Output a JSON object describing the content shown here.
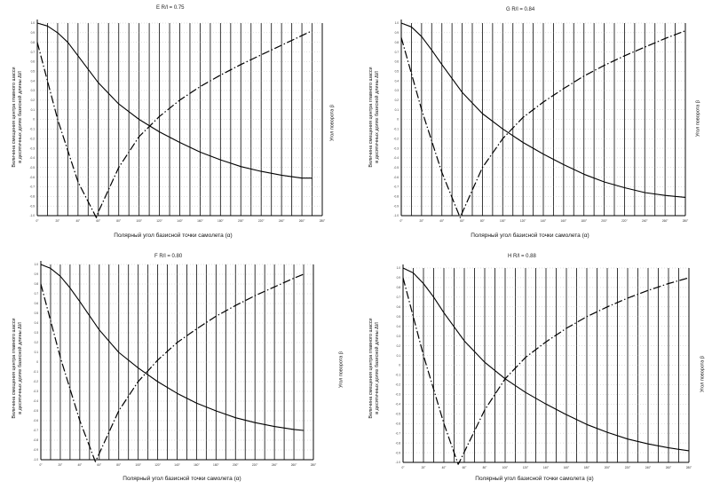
{
  "chart_data": [
    {
      "type": "line",
      "title": "E  R/l = 0.75",
      "xlabel": "Полярный угол базисной точки самолета (α)",
      "ylabel_line1": "Величина смещения центра главного шасси",
      "ylabel_line2": "в десятичных долях базисной длины Δl/l",
      "y2label": "Угол поворота β",
      "x_ticks": [
        "0°",
        "20°",
        "40°",
        "60°",
        "80°",
        "100°",
        "120°",
        "140°",
        "160°",
        "180°",
        "200°",
        "220°",
        "240°",
        "260°",
        "280°"
      ],
      "y_ticks": [
        "1.0",
        "0.9",
        "0.8",
        "0.7",
        "0.6",
        "0.5",
        "0.4",
        "0.3",
        "0.2",
        "0.1",
        "0",
        "-0.1",
        "-0.2",
        "-0.3",
        "-0.4",
        "-0.5",
        "-0.6",
        "-0.7",
        "-0.8",
        "-0.9",
        "-1.0"
      ],
      "xlim": [
        0,
        280
      ],
      "ylim": [
        -1.0,
        1.0
      ],
      "series": [
        {
          "style": "solid",
          "x": [
            0,
            10,
            20,
            30,
            40,
            60,
            80,
            100,
            120,
            140,
            160,
            180,
            200,
            220,
            240,
            260,
            270
          ],
          "y": [
            1.0,
            0.97,
            0.9,
            0.8,
            0.66,
            0.38,
            0.16,
            0.0,
            -0.13,
            -0.24,
            -0.34,
            -0.42,
            -0.49,
            -0.54,
            -0.58,
            -0.61,
            -0.61
          ]
        },
        {
          "style": "dashdot",
          "x": [
            0,
            20,
            40,
            58,
            60,
            80,
            100,
            120,
            140,
            160,
            180,
            200,
            220,
            240,
            260,
            270
          ],
          "y": [
            0.8,
            0.0,
            -0.65,
            -1.02,
            -0.96,
            -0.5,
            -0.18,
            0.03,
            0.2,
            0.34,
            0.46,
            0.57,
            0.67,
            0.77,
            0.87,
            0.92
          ]
        }
      ]
    },
    {
      "type": "line",
      "title": "G  R/l = 0.84",
      "xlabel": "Полярный угол базисной точки самолета (α)",
      "ylabel_line1": "Величина смещения центра главного шасси",
      "ylabel_line2": "в десятичных долях базисной длины Δl/l",
      "y2label": "Угол поворота β",
      "x_ticks": [
        "0°",
        "20°",
        "40°",
        "60°",
        "80°",
        "100°",
        "120°",
        "140°",
        "160°",
        "180°",
        "200°",
        "220°",
        "240°",
        "260°",
        "280°"
      ],
      "y_ticks": [
        "1.0",
        "0.9",
        "0.8",
        "0.7",
        "0.6",
        "0.5",
        "0.4",
        "0.3",
        "0.2",
        "0.1",
        "0",
        "-0.1",
        "-0.2",
        "-0.3",
        "-0.4",
        "-0.5",
        "-0.6",
        "-0.7",
        "-0.8",
        "-0.9",
        "-1.0"
      ],
      "xlim": [
        0,
        280
      ],
      "ylim": [
        -1.0,
        1.0
      ],
      "series": [
        {
          "style": "solid",
          "x": [
            0,
            10,
            20,
            30,
            40,
            60,
            80,
            100,
            120,
            140,
            160,
            180,
            200,
            220,
            240,
            260,
            280
          ],
          "y": [
            1.0,
            0.96,
            0.86,
            0.72,
            0.57,
            0.28,
            0.06,
            -0.1,
            -0.24,
            -0.36,
            -0.47,
            -0.57,
            -0.65,
            -0.71,
            -0.76,
            -0.79,
            -0.81
          ]
        },
        {
          "style": "dashdot",
          "x": [
            0,
            20,
            40,
            58,
            60,
            80,
            100,
            120,
            140,
            160,
            180,
            200,
            220,
            240,
            260,
            280
          ],
          "y": [
            0.85,
            0.1,
            -0.55,
            -1.02,
            -0.97,
            -0.5,
            -0.2,
            0.02,
            0.18,
            0.32,
            0.45,
            0.56,
            0.66,
            0.75,
            0.84,
            0.92
          ]
        }
      ]
    },
    {
      "type": "line",
      "title": "F  R/l = 0.80",
      "xlabel": "Полярный угол базисной точки самолета (α)",
      "ylabel_line1": "Величина смещения центра главного шасси",
      "ylabel_line2": "в десятичных долях базисной длины Δl/l",
      "y2label": "Угол поворота β",
      "x_ticks": [
        "0°",
        "20°",
        "40°",
        "60°",
        "80°",
        "100°",
        "120°",
        "140°",
        "160°",
        "180°",
        "200°",
        "220°",
        "240°",
        "260°",
        "280°"
      ],
      "y_ticks": [
        "1.0",
        "0.9",
        "0.8",
        "0.7",
        "0.6",
        "0.5",
        "0.4",
        "0.3",
        "0.2",
        "0.1",
        "0",
        "-0.1",
        "-0.2",
        "-0.3",
        "-0.4",
        "-0.5",
        "-0.6",
        "-0.7",
        "-0.8",
        "-0.9",
        "-1.0"
      ],
      "xlim": [
        0,
        280
      ],
      "ylim": [
        -1.0,
        1.0
      ],
      "series": [
        {
          "style": "solid",
          "x": [
            0,
            10,
            20,
            30,
            40,
            60,
            80,
            100,
            120,
            140,
            160,
            180,
            200,
            220,
            240,
            260,
            270
          ],
          "y": [
            1.0,
            0.96,
            0.88,
            0.76,
            0.62,
            0.33,
            0.1,
            -0.06,
            -0.2,
            -0.32,
            -0.42,
            -0.5,
            -0.57,
            -0.62,
            -0.66,
            -0.69,
            -0.7
          ]
        },
        {
          "style": "dashdot",
          "x": [
            0,
            20,
            40,
            56,
            58,
            80,
            100,
            120,
            140,
            160,
            180,
            200,
            220,
            240,
            260,
            270
          ],
          "y": [
            0.8,
            0.05,
            -0.6,
            -1.02,
            -0.98,
            -0.5,
            -0.2,
            0.02,
            0.2,
            0.34,
            0.47,
            0.58,
            0.68,
            0.77,
            0.86,
            0.9
          ]
        }
      ]
    },
    {
      "type": "line",
      "title": "H  R/l = 0.88",
      "xlabel": "Полярный угол базисной точки самолета (α)",
      "ylabel_line1": "Величина смещения центра главного шасси",
      "ylabel_line2": "в десятичных долях базисной длины Δl/l",
      "y2label": "Угол поворота β",
      "x_ticks": [
        "0°",
        "20°",
        "40°",
        "60°",
        "80°",
        "100°",
        "120°",
        "140°",
        "160°",
        "180°",
        "200°",
        "220°",
        "240°",
        "260°",
        "280°"
      ],
      "y_ticks": [
        "1.0",
        "0.9",
        "0.8",
        "0.7",
        "0.6",
        "0.5",
        "0.4",
        "0.3",
        "0.2",
        "0.1",
        "0",
        "-0.1",
        "-0.2",
        "-0.3",
        "-0.4",
        "-0.5",
        "-0.6",
        "-0.7",
        "-0.8",
        "-0.9",
        "-1.0"
      ],
      "xlim": [
        0,
        280
      ],
      "ylim": [
        -1.0,
        1.0
      ],
      "series": [
        {
          "style": "solid",
          "x": [
            0,
            10,
            20,
            30,
            40,
            60,
            80,
            100,
            120,
            140,
            160,
            180,
            200,
            220,
            240,
            260,
            280
          ],
          "y": [
            1.0,
            0.95,
            0.84,
            0.7,
            0.54,
            0.25,
            0.03,
            -0.14,
            -0.28,
            -0.4,
            -0.51,
            -0.61,
            -0.69,
            -0.76,
            -0.81,
            -0.85,
            -0.88
          ]
        },
        {
          "style": "dashdot",
          "x": [
            0,
            20,
            40,
            54,
            56,
            80,
            100,
            120,
            140,
            160,
            180,
            200,
            220,
            240,
            260,
            280
          ],
          "y": [
            0.9,
            0.1,
            -0.6,
            -1.02,
            -0.98,
            -0.46,
            -0.14,
            0.08,
            0.24,
            0.38,
            0.5,
            0.6,
            0.69,
            0.77,
            0.84,
            0.9
          ]
        }
      ]
    }
  ]
}
